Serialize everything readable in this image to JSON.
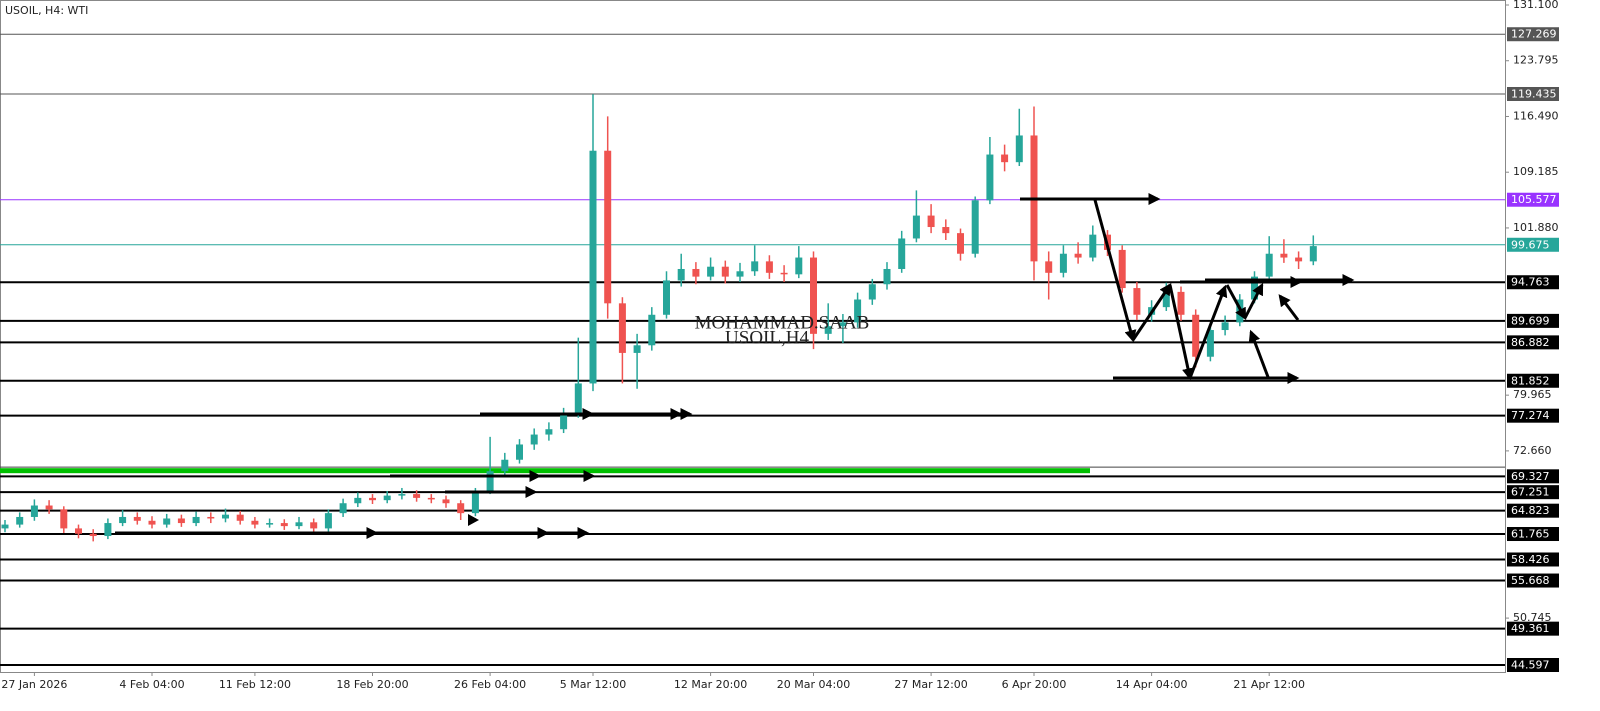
{
  "header": {
    "title": "USOIL, H4:  WTI"
  },
  "watermark": {
    "line1": "MOHAMMAD.SAAB",
    "line2": "USOIL,H4"
  },
  "chart_data": {
    "type": "candlestick",
    "up_color": "#26a69a",
    "down_color": "#ef5350",
    "ylim": [
      43.68,
      131.755
    ],
    "yticks": [
      {
        "value": 131.1,
        "label": "131.100"
      },
      123.795,
      {
        "value": 116.49,
        "label": "116.490"
      },
      109.185,
      {
        "value": 101.88,
        "label": "101.880"
      },
      79.965,
      {
        "value": 72.66,
        "label": "72.660"
      },
      50.745
    ],
    "categories": [
      null,
      null,
      "27 Jan 2026",
      null,
      null,
      null,
      null,
      null,
      null,
      null,
      "4 Feb 04:00",
      null,
      null,
      null,
      null,
      null,
      null,
      "11 Feb 12:00",
      null,
      null,
      null,
      null,
      null,
      null,
      null,
      "18 Feb 20:00",
      null,
      null,
      null,
      null,
      null,
      null,
      null,
      "26 Feb 04:00",
      null,
      null,
      null,
      null,
      null,
      null,
      "5 Mar 12:00",
      null,
      null,
      null,
      null,
      null,
      null,
      null,
      "12 Mar 20:00",
      null,
      null,
      null,
      null,
      null,
      null,
      "20 Mar 04:00",
      null,
      null,
      null,
      null,
      null,
      null,
      null,
      "27 Mar 12:00",
      null,
      null,
      null,
      null,
      null,
      null,
      "6 Apr 20:00",
      null,
      null,
      null,
      null,
      null,
      null,
      null,
      "14 Apr 04:00",
      null,
      null,
      null,
      null,
      null,
      null,
      null,
      "21 Apr 12:00",
      null,
      null,
      null
    ],
    "candles": [
      [
        62.5,
        63.6,
        62.0,
        63.0
      ],
      [
        63.0,
        64.6,
        62.6,
        64.0
      ],
      [
        64.0,
        66.3,
        63.5,
        65.5
      ],
      [
        65.5,
        66.2,
        64.4,
        65.0
      ],
      [
        65.0,
        65.4,
        61.9,
        62.5
      ],
      [
        62.5,
        63.0,
        61.2,
        61.8
      ],
      [
        61.8,
        62.4,
        60.8,
        61.5
      ],
      [
        61.5,
        63.8,
        61.1,
        63.2
      ],
      [
        63.2,
        64.9,
        62.8,
        64.0
      ],
      [
        64.0,
        64.6,
        63.0,
        63.5
      ],
      [
        63.5,
        64.1,
        62.5,
        63.0
      ],
      [
        63.0,
        64.4,
        62.6,
        63.8
      ],
      [
        63.8,
        64.3,
        62.7,
        63.2
      ],
      [
        63.2,
        64.7,
        62.8,
        64.0
      ],
      [
        64.0,
        64.6,
        63.2,
        63.8
      ],
      [
        63.8,
        65.1,
        63.3,
        64.3
      ],
      [
        64.3,
        64.8,
        63.0,
        63.5
      ],
      [
        63.5,
        64.0,
        62.5,
        63.0
      ],
      [
        63.0,
        63.8,
        62.6,
        63.2
      ],
      [
        63.2,
        63.7,
        62.3,
        62.8
      ],
      [
        62.8,
        64.0,
        62.4,
        63.3
      ],
      [
        63.3,
        63.8,
        62.0,
        62.5
      ],
      [
        62.5,
        65.0,
        62.1,
        64.5
      ],
      [
        64.5,
        66.4,
        64.0,
        65.8
      ],
      [
        65.8,
        67.2,
        65.3,
        66.5
      ],
      [
        66.5,
        67.0,
        65.7,
        66.2
      ],
      [
        66.2,
        67.4,
        65.8,
        66.8
      ],
      [
        66.8,
        67.8,
        66.3,
        67.0
      ],
      [
        67.0,
        67.5,
        66.0,
        66.5
      ],
      [
        66.5,
        67.0,
        65.8,
        66.3
      ],
      [
        66.3,
        66.8,
        65.2,
        65.8
      ],
      [
        65.8,
        66.2,
        63.6,
        64.5
      ],
      [
        64.5,
        67.8,
        64.1,
        67.2
      ],
      [
        67.2,
        74.5,
        67.0,
        70.0
      ],
      [
        70.0,
        72.4,
        69.2,
        71.5
      ],
      [
        71.5,
        74.2,
        71.0,
        73.5
      ],
      [
        73.5,
        75.6,
        72.8,
        74.8
      ],
      [
        74.8,
        76.4,
        74.0,
        75.5
      ],
      [
        75.5,
        78.3,
        75.0,
        77.5
      ],
      [
        77.5,
        87.5,
        77.0,
        81.5
      ],
      [
        81.5,
        119.4,
        80.5,
        112.0
      ],
      [
        112.0,
        116.5,
        90.0,
        92.0
      ],
      [
        92.0,
        92.8,
        81.5,
        85.5
      ],
      [
        85.5,
        88.0,
        80.8,
        86.5
      ],
      [
        86.5,
        91.5,
        85.8,
        90.5
      ],
      [
        90.5,
        96.2,
        90.0,
        95.0
      ],
      [
        95.0,
        98.5,
        94.2,
        96.5
      ],
      [
        96.5,
        97.4,
        94.5,
        95.5
      ],
      [
        95.5,
        98.0,
        95.0,
        96.8
      ],
      [
        96.8,
        97.6,
        94.6,
        95.5
      ],
      [
        95.5,
        97.3,
        94.8,
        96.2
      ],
      [
        96.2,
        99.6,
        95.6,
        97.5
      ],
      [
        97.5,
        98.3,
        95.2,
        96.0
      ],
      [
        96.0,
        97.0,
        94.8,
        95.8
      ],
      [
        95.8,
        99.5,
        95.3,
        98.0
      ],
      [
        98.0,
        98.8,
        86.0,
        88.0
      ],
      [
        88.0,
        92.0,
        87.2,
        89.0
      ],
      [
        89.0,
        90.6,
        86.8,
        89.5
      ],
      [
        89.5,
        93.4,
        88.8,
        92.5
      ],
      [
        92.5,
        95.2,
        91.8,
        94.5
      ],
      [
        94.5,
        97.4,
        93.8,
        96.5
      ],
      [
        96.5,
        101.5,
        96.0,
        100.5
      ],
      [
        100.5,
        106.8,
        100.0,
        103.5
      ],
      [
        103.5,
        105.0,
        101.2,
        102.0
      ],
      [
        102.0,
        103.0,
        100.3,
        101.2
      ],
      [
        101.2,
        101.8,
        97.6,
        98.5
      ],
      [
        98.5,
        106.0,
        98.0,
        105.5
      ],
      [
        105.5,
        113.8,
        105.0,
        111.5
      ],
      [
        111.5,
        112.8,
        109.3,
        110.5
      ],
      [
        110.5,
        117.5,
        110.0,
        114.0
      ],
      [
        114.0,
        117.8,
        95.0,
        97.5
      ],
      [
        97.5,
        98.8,
        92.5,
        96.0
      ],
      [
        96.0,
        99.6,
        95.4,
        98.5
      ],
      [
        98.5,
        100.0,
        97.2,
        98.0
      ],
      [
        98.0,
        102.2,
        97.5,
        101.0
      ],
      [
        101.0,
        101.6,
        98.2,
        99.0
      ],
      [
        99.0,
        99.6,
        93.4,
        94.0
      ],
      [
        94.0,
        94.8,
        89.8,
        90.5
      ],
      [
        90.5,
        92.4,
        89.6,
        91.5
      ],
      [
        91.5,
        94.7,
        91.0,
        93.5
      ],
      [
        93.5,
        94.2,
        89.7,
        90.5
      ],
      [
        90.5,
        91.2,
        83.6,
        85.0
      ],
      [
        85.0,
        89.3,
        84.4,
        88.5
      ],
      [
        88.5,
        90.4,
        87.8,
        89.5
      ],
      [
        89.5,
        93.2,
        89.0,
        92.5
      ],
      [
        92.5,
        96.2,
        92.0,
        95.5
      ],
      [
        95.5,
        100.8,
        95.0,
        98.5
      ],
      [
        98.5,
        100.4,
        97.3,
        98.0
      ],
      [
        98.0,
        98.8,
        96.5,
        97.5
      ],
      [
        97.5,
        100.9,
        97.0,
        99.5
      ]
    ],
    "levels": [
      {
        "value": 127.269,
        "color": "#555555"
      },
      {
        "value": 119.435,
        "color": "#555555"
      },
      {
        "value": 105.577,
        "color": "#9933ff"
      },
      {
        "value": 99.675,
        "color": "#26a69a"
      },
      {
        "value": 94.763,
        "color": "#000000"
      },
      {
        "value": 89.699,
        "color": "#000000"
      },
      {
        "value": 86.882,
        "color": "#000000"
      },
      {
        "value": 81.852,
        "color": "#000000"
      },
      {
        "value": 77.274,
        "color": "#000000"
      },
      {
        "value": 69.327,
        "color": "#000000"
      },
      {
        "value": 67.251,
        "color": "#000000"
      },
      {
        "value": 64.823,
        "color": "#000000"
      },
      {
        "value": 61.765,
        "color": "#000000"
      },
      {
        "value": 58.426,
        "color": "#000000"
      },
      {
        "value": 55.668,
        "color": "#000000"
      },
      {
        "value": 49.361,
        "color": "#000000"
      },
      {
        "value": 44.597,
        "color": "#000000"
      }
    ],
    "zones": [
      {
        "value": 70.0,
        "color": "#00c000"
      }
    ]
  }
}
